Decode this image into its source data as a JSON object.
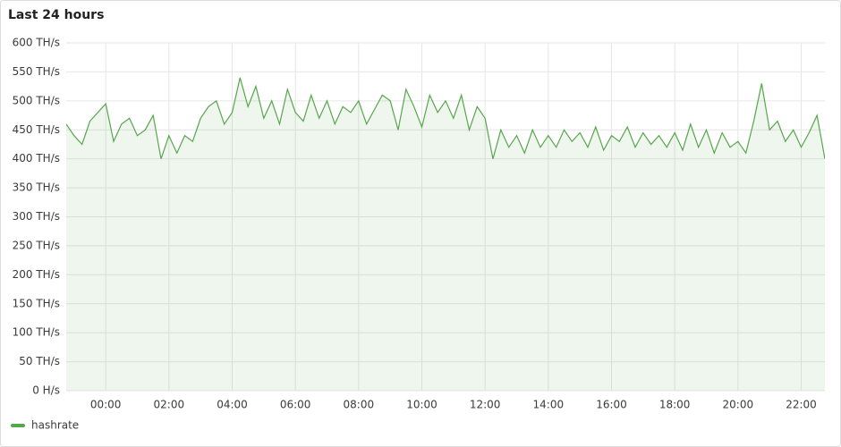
{
  "chart_data": {
    "type": "line",
    "title": "Last 24 hours",
    "x": [
      -1.25,
      -1.0,
      -0.75,
      -0.5,
      -0.25,
      0,
      0.25,
      0.5,
      0.75,
      1.0,
      1.25,
      1.5,
      1.75,
      2.0,
      2.25,
      2.5,
      2.75,
      3.0,
      3.25,
      3.5,
      3.75,
      4.0,
      4.25,
      4.5,
      4.75,
      5.0,
      5.25,
      5.5,
      5.75,
      6.0,
      6.25,
      6.5,
      6.75,
      7.0,
      7.25,
      7.5,
      7.75,
      8.0,
      8.25,
      8.5,
      8.75,
      9.0,
      9.25,
      9.5,
      9.75,
      10.0,
      10.25,
      10.5,
      10.75,
      11.0,
      11.25,
      11.5,
      11.75,
      12.0,
      12.25,
      12.5,
      12.75,
      13.0,
      13.25,
      13.5,
      13.75,
      14.0,
      14.25,
      14.5,
      14.75,
      15.0,
      15.25,
      15.5,
      15.75,
      16.0,
      16.25,
      16.5,
      16.75,
      17.0,
      17.25,
      17.5,
      17.75,
      18.0,
      18.25,
      18.5,
      18.75,
      19.0,
      19.25,
      19.5,
      19.75,
      20.0,
      20.25,
      20.5,
      20.75,
      21.0,
      21.25,
      21.5,
      21.75,
      22.0,
      22.25,
      22.5,
      22.75
    ],
    "series": [
      {
        "name": "hashrate",
        "color": "#56a64b",
        "values": [
          460,
          440,
          425,
          465,
          480,
          495,
          430,
          460,
          470,
          440,
          450,
          475,
          400,
          440,
          410,
          440,
          430,
          470,
          490,
          500,
          460,
          480,
          540,
          490,
          525,
          470,
          500,
          460,
          520,
          480,
          465,
          510,
          470,
          500,
          460,
          490,
          480,
          500,
          460,
          485,
          510,
          500,
          450,
          520,
          490,
          455,
          510,
          480,
          500,
          470,
          510,
          450,
          490,
          470,
          400,
          450,
          420,
          440,
          410,
          450,
          420,
          440,
          420,
          450,
          430,
          445,
          420,
          455,
          415,
          440,
          430,
          455,
          420,
          445,
          425,
          440,
          420,
          445,
          415,
          460,
          420,
          450,
          410,
          445,
          420,
          430,
          410,
          465,
          530,
          450,
          465,
          430,
          450,
          420,
          445,
          475,
          400
        ]
      }
    ],
    "xlim": [
      -1.25,
      22.75
    ],
    "xticks": [
      {
        "value": 0,
        "label": "00:00"
      },
      {
        "value": 2,
        "label": "02:00"
      },
      {
        "value": 4,
        "label": "04:00"
      },
      {
        "value": 6,
        "label": "06:00"
      },
      {
        "value": 8,
        "label": "08:00"
      },
      {
        "value": 10,
        "label": "10:00"
      },
      {
        "value": 12,
        "label": "12:00"
      },
      {
        "value": 14,
        "label": "14:00"
      },
      {
        "value": 16,
        "label": "16:00"
      },
      {
        "value": 18,
        "label": "18:00"
      },
      {
        "value": 20,
        "label": "20:00"
      },
      {
        "value": 22,
        "label": "22:00"
      }
    ],
    "ylim": [
      0,
      600
    ],
    "yticks": [
      {
        "value": 0,
        "label": "0 H/s"
      },
      {
        "value": 50,
        "label": "50 TH/s"
      },
      {
        "value": 100,
        "label": "100 TH/s"
      },
      {
        "value": 150,
        "label": "150 TH/s"
      },
      {
        "value": 200,
        "label": "200 TH/s"
      },
      {
        "value": 250,
        "label": "250 TH/s"
      },
      {
        "value": 300,
        "label": "300 TH/s"
      },
      {
        "value": 350,
        "label": "350 TH/s"
      },
      {
        "value": 400,
        "label": "400 TH/s"
      },
      {
        "value": 450,
        "label": "450 TH/s"
      },
      {
        "value": 500,
        "label": "500 TH/s"
      },
      {
        "value": 550,
        "label": "550 TH/s"
      },
      {
        "value": 600,
        "label": "600 TH/s"
      }
    ],
    "grid": true,
    "legend": "bottom-left"
  }
}
